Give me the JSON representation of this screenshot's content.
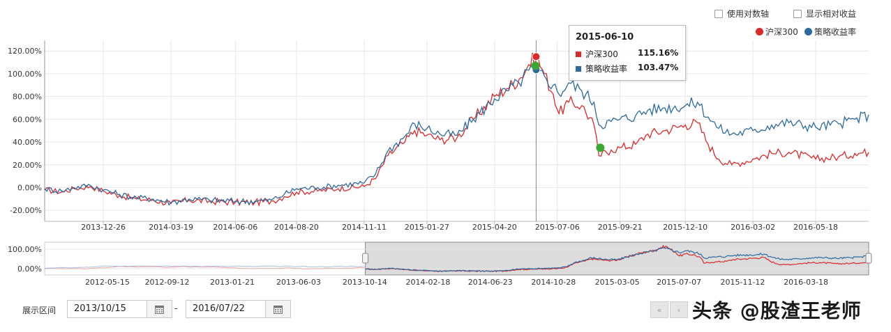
{
  "controls": {
    "log_axis_label": "使用对数轴",
    "relative_label": "显示相对收益",
    "range_label": "展示区间",
    "start_date": "2013/10/15",
    "end_date": "2016/07/22",
    "range_sep": "-"
  },
  "watermark": "头条 @股渣王老师",
  "tooltip": {
    "date": "2015-06-10",
    "rows": [
      {
        "name": "沪深300",
        "value": "115.16%",
        "color": "#d92b2b"
      },
      {
        "name": "策略收益率",
        "value": "103.47%",
        "color": "#2c6aa0"
      }
    ]
  },
  "chart_data": [
    {
      "type": "line",
      "title": "",
      "legend_position": "top-right",
      "grid": true,
      "ylim": [
        -25,
        130
      ],
      "y_ticks": [
        "-20.00%",
        "0.00%",
        "20.00%",
        "40.00%",
        "60.00%",
        "80.00%",
        "100.00%",
        "120.00%"
      ],
      "y_tick_values": [
        -20,
        0,
        20,
        40,
        60,
        80,
        100,
        120
      ],
      "x_range": [
        "2013-10-15",
        "2016-07-22"
      ],
      "x_ticks": [
        "2013-12-26",
        "2014-03-19",
        "2014-06-06",
        "2014-08-20",
        "2014-11-11",
        "2015-01-27",
        "2015-04-20",
        "2015-07-06",
        "2015-09-21",
        "2015-12-10",
        "2016-03-02",
        "2016-05-18"
      ],
      "marker_date": "2015-06-10",
      "series": [
        {
          "name": "沪深300",
          "color": "#d92b2b",
          "points": [
            [
              "2013-10-15",
              -2
            ],
            [
              "2013-11-05",
              -4
            ],
            [
              "2013-11-20",
              -1
            ],
            [
              "2013-12-10",
              1
            ],
            [
              "2013-12-26",
              -3
            ],
            [
              "2014-01-15",
              -7
            ],
            [
              "2014-02-05",
              -10
            ],
            [
              "2014-02-25",
              -11
            ],
            [
              "2014-03-19",
              -14
            ],
            [
              "2014-04-10",
              -11
            ],
            [
              "2014-05-05",
              -12
            ],
            [
              "2014-06-06",
              -13
            ],
            [
              "2014-06-30",
              -13
            ],
            [
              "2014-07-20",
              -12
            ],
            [
              "2014-08-05",
              -8
            ],
            [
              "2014-08-20",
              -4
            ],
            [
              "2014-09-15",
              -3
            ],
            [
              "2014-10-10",
              -1
            ],
            [
              "2014-11-11",
              1
            ],
            [
              "2014-11-25",
              8
            ],
            [
              "2014-12-10",
              28
            ],
            [
              "2014-12-31",
              40
            ],
            [
              "2015-01-12",
              50
            ],
            [
              "2015-01-27",
              46
            ],
            [
              "2015-02-12",
              42
            ],
            [
              "2015-03-05",
              44
            ],
            [
              "2015-03-25",
              60
            ],
            [
              "2015-04-20",
              80
            ],
            [
              "2015-05-05",
              87
            ],
            [
              "2015-05-20",
              95
            ],
            [
              "2015-06-01",
              108
            ],
            [
              "2015-06-10",
              115
            ],
            [
              "2015-06-20",
              100
            ],
            [
              "2015-07-01",
              82
            ],
            [
              "2015-07-08",
              65
            ],
            [
              "2015-07-20",
              75
            ],
            [
              "2015-08-05",
              72
            ],
            [
              "2015-08-20",
              55
            ],
            [
              "2015-08-26",
              28
            ],
            [
              "2015-09-10",
              33
            ],
            [
              "2015-09-21",
              35
            ],
            [
              "2015-10-10",
              38
            ],
            [
              "2015-10-25",
              47
            ],
            [
              "2015-11-15",
              50
            ],
            [
              "2015-12-10",
              55
            ],
            [
              "2015-12-25",
              57
            ],
            [
              "2016-01-07",
              38
            ],
            [
              "2016-01-20",
              25
            ],
            [
              "2016-02-05",
              20
            ],
            [
              "2016-03-02",
              25
            ],
            [
              "2016-03-25",
              30
            ],
            [
              "2016-04-15",
              31
            ],
            [
              "2016-05-18",
              25
            ],
            [
              "2016-06-15",
              27
            ],
            [
              "2016-07-05",
              30
            ],
            [
              "2016-07-22",
              31
            ]
          ]
        },
        {
          "name": "策略收益率",
          "color": "#2c6aa0",
          "points": [
            [
              "2013-10-15",
              -1
            ],
            [
              "2013-11-05",
              -3
            ],
            [
              "2013-11-20",
              0
            ],
            [
              "2013-12-10",
              2
            ],
            [
              "2013-12-26",
              -2
            ],
            [
              "2014-01-15",
              -6
            ],
            [
              "2014-02-05",
              -9
            ],
            [
              "2014-02-25",
              -10
            ],
            [
              "2014-03-19",
              -13
            ],
            [
              "2014-04-10",
              -10
            ],
            [
              "2014-05-05",
              -11
            ],
            [
              "2014-06-06",
              -12
            ],
            [
              "2014-06-30",
              -12
            ],
            [
              "2014-07-20",
              -11
            ],
            [
              "2014-08-05",
              -6
            ],
            [
              "2014-08-20",
              -1
            ],
            [
              "2014-09-15",
              0
            ],
            [
              "2014-10-10",
              2
            ],
            [
              "2014-11-11",
              4
            ],
            [
              "2014-11-25",
              12
            ],
            [
              "2014-12-10",
              32
            ],
            [
              "2014-12-31",
              45
            ],
            [
              "2015-01-12",
              56
            ],
            [
              "2015-01-27",
              52
            ],
            [
              "2015-02-12",
              47
            ],
            [
              "2015-03-05",
              46
            ],
            [
              "2015-03-25",
              60
            ],
            [
              "2015-04-20",
              78
            ],
            [
              "2015-05-05",
              85
            ],
            [
              "2015-05-20",
              92
            ],
            [
              "2015-06-01",
              103
            ],
            [
              "2015-06-10",
              103.5
            ],
            [
              "2015-06-20",
              98
            ],
            [
              "2015-07-01",
              90
            ],
            [
              "2015-07-08",
              82
            ],
            [
              "2015-07-20",
              92
            ],
            [
              "2015-08-05",
              85
            ],
            [
              "2015-08-20",
              75
            ],
            [
              "2015-08-26",
              55
            ],
            [
              "2015-09-10",
              58
            ],
            [
              "2015-09-21",
              60
            ],
            [
              "2015-10-10",
              63
            ],
            [
              "2015-10-25",
              68
            ],
            [
              "2015-11-15",
              70
            ],
            [
              "2015-12-10",
              72
            ],
            [
              "2015-12-25",
              75
            ],
            [
              "2016-01-07",
              62
            ],
            [
              "2016-01-20",
              52
            ],
            [
              "2016-02-05",
              47
            ],
            [
              "2016-03-02",
              50
            ],
            [
              "2016-03-25",
              55
            ],
            [
              "2016-04-15",
              57
            ],
            [
              "2016-05-18",
              53
            ],
            [
              "2016-06-15",
              56
            ],
            [
              "2016-07-05",
              60
            ],
            [
              "2016-07-22",
              64
            ]
          ]
        }
      ]
    },
    {
      "type": "area",
      "title": "",
      "grid": true,
      "ylim": [
        -15,
        125
      ],
      "y_ticks": [
        "0.00%",
        "100.00%"
      ],
      "y_tick_values": [
        0,
        100
      ],
      "x_range": [
        "2012-01-10",
        "2016-07-22"
      ],
      "x_ticks": [
        "2012-05-15",
        "2012-09-12",
        "2013-01-21",
        "2013-06-03",
        "2013-10-14",
        "2014-02-18",
        "2014-06-23",
        "2014-10-28",
        "2015-03-05",
        "2015-07-07",
        "2015-11-12",
        "2016-03-18"
      ],
      "selected_range": [
        "2013-10-15",
        "2016-07-22"
      ]
    }
  ]
}
